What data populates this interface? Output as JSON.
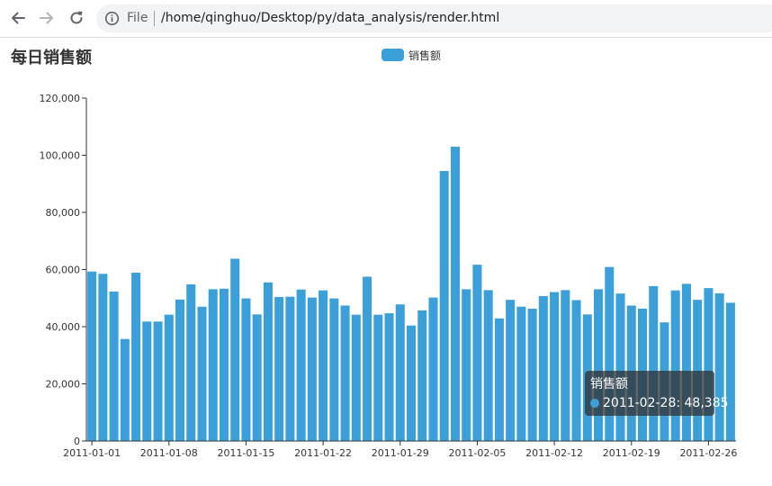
{
  "browser": {
    "file_label": "File",
    "url": "/home/qinghuo/Desktop/py/data_analysis/render.html"
  },
  "colors": {
    "bar": "#3ba0da",
    "axis": "#333333",
    "text": "#333333"
  },
  "chart_data": {
    "type": "bar",
    "title": "每日销售额",
    "legend": "top-center",
    "grid": false,
    "xlabel": "",
    "ylabel": "",
    "ylim": [
      0,
      120000
    ],
    "yticks": [
      "0",
      "20,000",
      "40,000",
      "60,000",
      "80,000",
      "100,000",
      "120,000"
    ],
    "xticks": [
      "2011-01-01",
      "2011-01-08",
      "2011-01-15",
      "2011-01-22",
      "2011-01-29",
      "2011-02-05",
      "2011-02-12",
      "2011-02-19",
      "2011-02-26"
    ],
    "categories": [
      "2011-01-01",
      "2011-01-02",
      "2011-01-03",
      "2011-01-04",
      "2011-01-05",
      "2011-01-06",
      "2011-01-07",
      "2011-01-08",
      "2011-01-09",
      "2011-01-10",
      "2011-01-11",
      "2011-01-12",
      "2011-01-13",
      "2011-01-14",
      "2011-01-15",
      "2011-01-16",
      "2011-01-17",
      "2011-01-18",
      "2011-01-19",
      "2011-01-20",
      "2011-01-21",
      "2011-01-22",
      "2011-01-23",
      "2011-01-24",
      "2011-01-25",
      "2011-01-26",
      "2011-01-27",
      "2011-01-28",
      "2011-01-29",
      "2011-01-30",
      "2011-01-31",
      "2011-02-01",
      "2011-02-02",
      "2011-02-03",
      "2011-02-04",
      "2011-02-05",
      "2011-02-06",
      "2011-02-07",
      "2011-02-08",
      "2011-02-09",
      "2011-02-10",
      "2011-02-11",
      "2011-02-12",
      "2011-02-13",
      "2011-02-14",
      "2011-02-15",
      "2011-02-16",
      "2011-02-17",
      "2011-02-18",
      "2011-02-19",
      "2011-02-20",
      "2011-02-21",
      "2011-02-22",
      "2011-02-23",
      "2011-02-24",
      "2011-02-25",
      "2011-02-26",
      "2011-02-27",
      "2011-02-28"
    ],
    "series": [
      {
        "name": "销售额",
        "values": [
          59300,
          58500,
          52300,
          35700,
          58900,
          41800,
          41800,
          44200,
          49500,
          54800,
          47000,
          53100,
          53300,
          63800,
          49900,
          44300,
          55500,
          50400,
          50500,
          53000,
          50200,
          52700,
          49900,
          47400,
          44200,
          57500,
          44200,
          44700,
          47800,
          40400,
          45700,
          50200,
          94500,
          103000,
          53100,
          61700,
          52800,
          42900,
          49400,
          47000,
          46300,
          50700,
          52100,
          52800,
          49300,
          44300,
          53100,
          60900,
          51600,
          47400,
          46300,
          54200,
          41500,
          52700,
          55000,
          49400,
          53500,
          51700,
          48385
        ]
      }
    ]
  },
  "tooltip": {
    "title": "销售额",
    "text": "2011-02-28: 48,385"
  }
}
